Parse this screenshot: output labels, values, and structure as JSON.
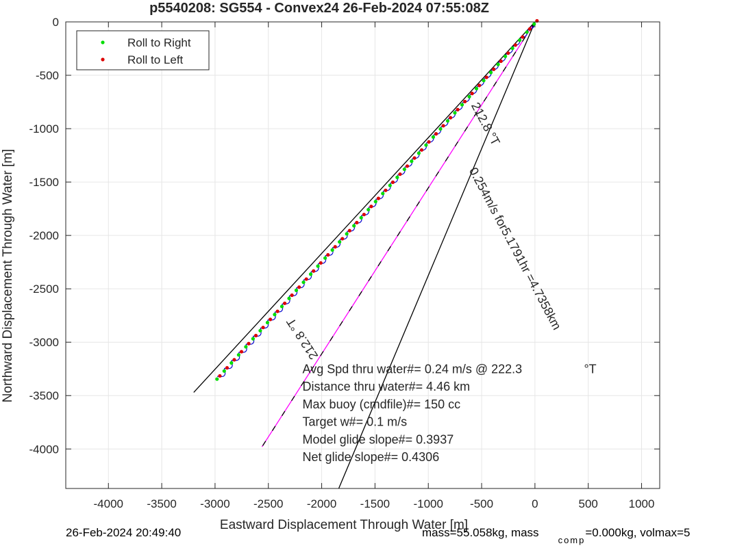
{
  "chart_data": {
    "type": "scatter",
    "title": "p5540208: SG554 - Convex24 26-Feb-2024 07:55:08Z",
    "xlabel": "Eastward Displacement Through Water [m]",
    "ylabel": "Northward Displacement Through Water [m]",
    "xlim": [
      -4400,
      1170
    ],
    "ylim": [
      -4370,
      0
    ],
    "xticks": [
      -4000,
      -3500,
      -3000,
      -2500,
      -2000,
      -1500,
      -1000,
      -500,
      0,
      500,
      1000
    ],
    "yticks": [
      0,
      -500,
      -1000,
      -1500,
      -2000,
      -2500,
      -3000,
      -3500,
      -4000
    ],
    "grid": true,
    "legend_position": "top-left",
    "legend": [
      {
        "label": "Roll to Right",
        "color": "#00dd00"
      },
      {
        "label": "Roll to Left",
        "color": "#dd0000"
      }
    ],
    "track": {
      "color": "#0000cc",
      "start": [
        0,
        0
      ],
      "end": [
        -2980,
        -3320
      ],
      "wiggle_count": 44,
      "wiggle_amplitude_m": 45
    },
    "lines": [
      {
        "name": "upper-heading-line",
        "color": "#000000",
        "x": [
          0,
          -3200
        ],
        "y": [
          0,
          -3470
        ]
      },
      {
        "name": "lower-heading-line",
        "color": "#000000",
        "x": [
          0,
          -1840
        ],
        "y": [
          0,
          -4370
        ]
      },
      {
        "name": "current-line",
        "color": "#ff00ff",
        "dashed_with": "#000000",
        "x": [
          0,
          -2560
        ],
        "y": [
          0,
          -3980
        ]
      }
    ],
    "line_labels": [
      {
        "text": "212.8 °T",
        "x": -600,
        "y": -780,
        "angle_deg": 62
      },
      {
        "text": "0.254m/s for5.1791hr =4.7358km",
        "x": -620,
        "y": -1390,
        "angle_deg": 62
      },
      {
        "text": "212.8 °T",
        "x": -2030,
        "y": -3130,
        "angle_deg": -123
      }
    ],
    "annotations": [
      "Avg Spd thru water#=  0.24 m/s @ 222.3",
      "°T",
      "Distance thru water#=  4.46 km",
      "Max buoy (cmdfile)#= 150 cc",
      "Target w#= 0.1 m/s",
      "Model glide slope#= 0.3937",
      "Net glide slope#= 0.4306"
    ]
  },
  "footer": {
    "date": "26-Feb-2024 20:49:40",
    "mass_text": "mass=55.058kg, mass",
    "comp_sub": "comp",
    "comp_rest": "=0.000kg, volmax=5"
  }
}
